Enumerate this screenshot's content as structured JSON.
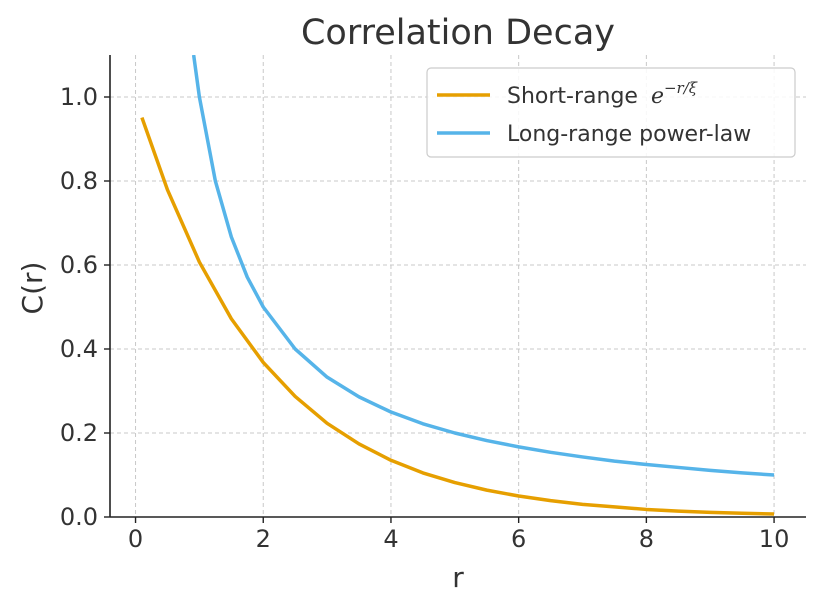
{
  "chart_data": {
    "type": "line",
    "title": "Correlation Decay",
    "xlabel": "r",
    "ylabel": "C(r)",
    "xlim": [
      -0.4,
      10.5
    ],
    "ylim": [
      0.0,
      1.1
    ],
    "xticks": [
      0,
      2,
      4,
      6,
      8,
      10
    ],
    "xtick_labels": [
      "0",
      "2",
      "4",
      "6",
      "8",
      "10"
    ],
    "yticks": [
      0.0,
      0.2,
      0.4,
      0.6,
      0.8,
      1.0
    ],
    "ytick_labels": [
      "0.0",
      "0.2",
      "0.4",
      "0.6",
      "0.8",
      "1.0"
    ],
    "grid": true,
    "legend_position": "top-right",
    "series": [
      {
        "name": "Short-range",
        "name_math_exponent": "−r/ξ",
        "color": "#E69F00",
        "x": [
          0.1,
          0.5,
          1.0,
          1.5,
          2.0,
          2.5,
          3.0,
          3.5,
          4.0,
          4.5,
          5.0,
          5.5,
          6.0,
          6.5,
          7.0,
          7.5,
          8.0,
          8.5,
          9.0,
          9.5,
          10.0
        ],
        "y": [
          0.951,
          0.779,
          0.607,
          0.472,
          0.368,
          0.287,
          0.223,
          0.174,
          0.135,
          0.105,
          0.082,
          0.064,
          0.05,
          0.039,
          0.03,
          0.024,
          0.018,
          0.014,
          0.011,
          0.009,
          0.007
        ]
      },
      {
        "name": "Long-range power-law",
        "color": "#56B4E9",
        "x": [
          0.91,
          1.0,
          1.25,
          1.5,
          1.75,
          2.0,
          2.5,
          3.0,
          3.5,
          4.0,
          4.5,
          5.0,
          5.5,
          6.0,
          6.5,
          7.0,
          7.5,
          8.0,
          8.5,
          9.0,
          9.5,
          10.0
        ],
        "y": [
          1.1,
          1.0,
          0.8,
          0.667,
          0.571,
          0.5,
          0.4,
          0.333,
          0.286,
          0.25,
          0.222,
          0.2,
          0.182,
          0.167,
          0.154,
          0.143,
          0.133,
          0.125,
          0.118,
          0.111,
          0.105,
          0.1
        ]
      }
    ]
  }
}
